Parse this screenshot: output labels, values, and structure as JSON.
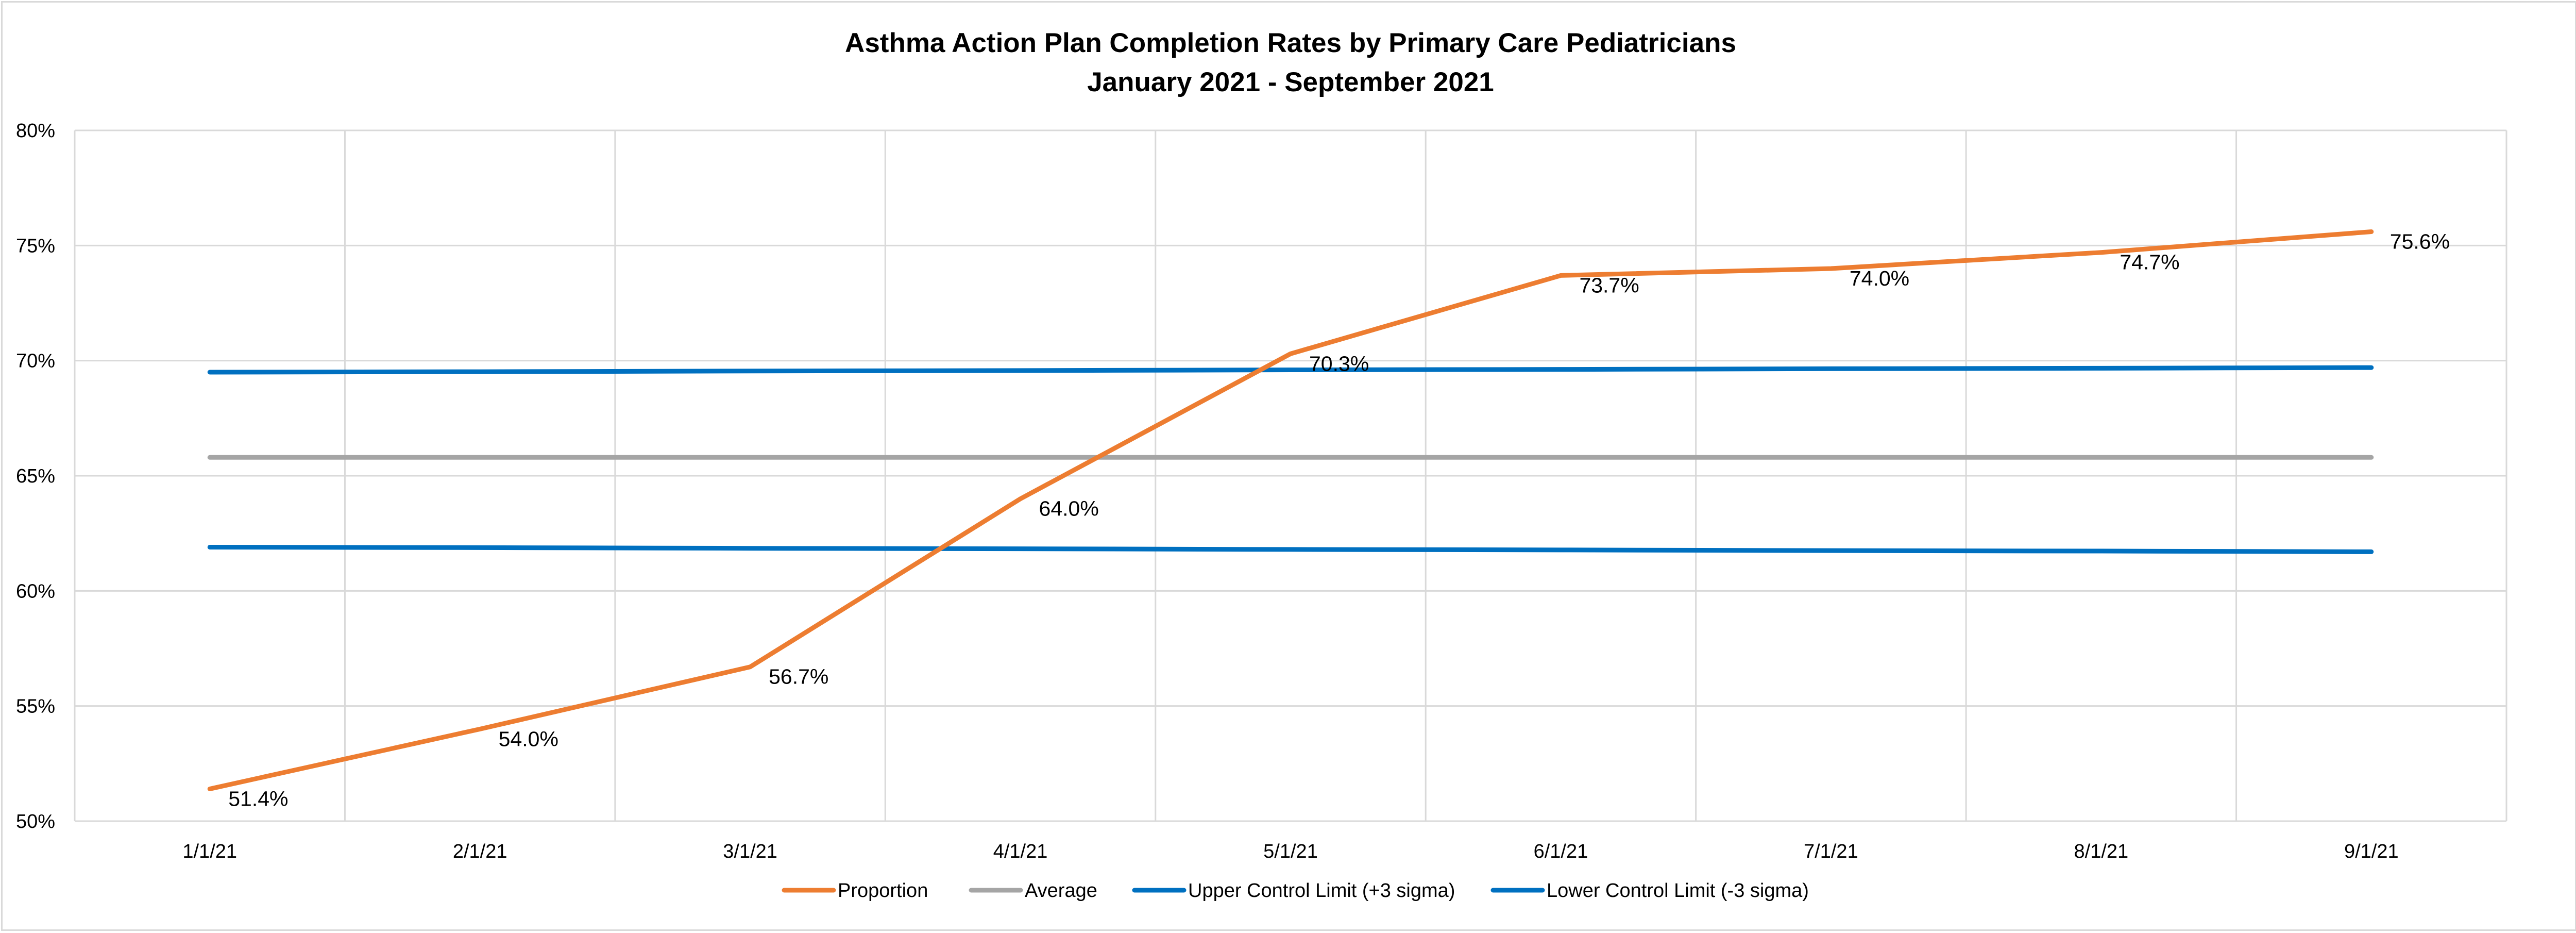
{
  "chart_data": {
    "type": "line",
    "title": "Asthma Action Plan Completion Rates by Primary Care Pediatricians",
    "subtitle": "January 2021 - September 2021",
    "categories": [
      "1/1/21",
      "2/1/21",
      "3/1/21",
      "4/1/21",
      "5/1/21",
      "6/1/21",
      "7/1/21",
      "8/1/21",
      "9/1/21"
    ],
    "ylim": [
      0.5,
      0.8
    ],
    "yticks": [
      0.5,
      0.55,
      0.6,
      0.65,
      0.7,
      0.75,
      0.8
    ],
    "ytick_labels": [
      "50%",
      "55%",
      "60%",
      "65%",
      "70%",
      "75%",
      "80%"
    ],
    "grid": true,
    "legend_position": "bottom",
    "series": [
      {
        "name": "Proportion",
        "color": "#ED7D31",
        "values": [
          0.514,
          0.54,
          0.567,
          0.64,
          0.703,
          0.737,
          0.74,
          0.747,
          0.756
        ],
        "data_labels": [
          "51.4%",
          "54.0%",
          "56.7%",
          "64.0%",
          "70.3%",
          "73.7%",
          "74.0%",
          "74.7%",
          "75.6%"
        ]
      },
      {
        "name": "Average",
        "color": "#A5A5A5",
        "values": [
          0.658,
          0.658,
          0.658,
          0.658,
          0.658,
          0.658,
          0.658,
          0.658,
          0.658
        ]
      },
      {
        "name": "Upper Control Limit (+3 sigma)",
        "color": "#0070C0",
        "values": [
          0.695,
          0.6952,
          0.6955,
          0.6957,
          0.696,
          0.6962,
          0.6965,
          0.6967,
          0.697
        ]
      },
      {
        "name": "Lower Control Limit (-3 sigma)",
        "color": "#0070C0",
        "values": [
          0.619,
          0.6188,
          0.6185,
          0.6183,
          0.618,
          0.6178,
          0.6175,
          0.6173,
          0.617
        ]
      }
    ]
  }
}
